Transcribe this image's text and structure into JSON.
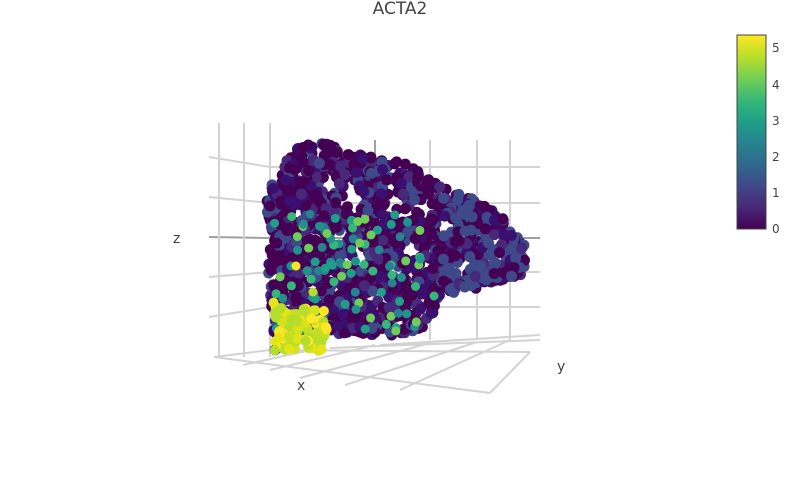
{
  "chart_data": {
    "type": "scatter3d",
    "title": "ACTA2",
    "xlabel": "x",
    "ylabel": "y",
    "zlabel": "z",
    "grid": true,
    "colorscale": "viridis",
    "colorbar": {
      "range": [
        0,
        5.4
      ],
      "ticks": [
        "0",
        "1",
        "2",
        "3",
        "4",
        "5"
      ],
      "placement": "right"
    },
    "colors": {
      "low": "#440154",
      "mid": "#21918c",
      "high": "#fde725"
    }
  }
}
